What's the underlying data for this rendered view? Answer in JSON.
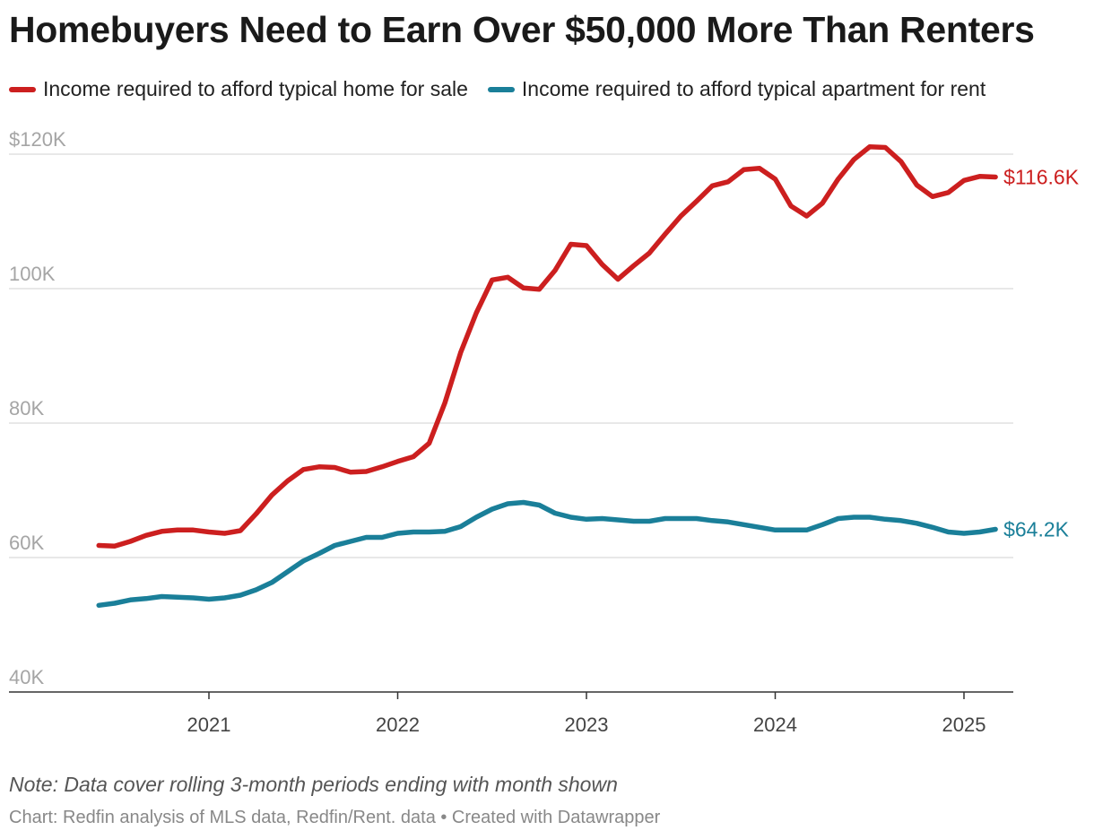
{
  "chart_data": {
    "type": "line",
    "title": "Homebuyers Need to Earn Over $50,000 More Than Renters",
    "note": "Note: Data cover rolling 3-month periods ending with month shown",
    "source": "Chart: Redfin analysis of MLS data, Redfin/Rent. data • Created with Datawrapper",
    "ylim": [
      40000,
      120000
    ],
    "y_ticks": [
      {
        "value": 120000,
        "label": "$120K"
      },
      {
        "value": 100000,
        "label": "100K"
      },
      {
        "value": 80000,
        "label": "80K"
      },
      {
        "value": 60000,
        "label": "60K"
      },
      {
        "value": 40000,
        "label": "40K"
      }
    ],
    "x_ticks": [
      {
        "value": "2021-01",
        "label": "2021"
      },
      {
        "value": "2022-01",
        "label": "2022"
      },
      {
        "value": "2023-01",
        "label": "2023"
      },
      {
        "value": "2024-01",
        "label": "2024"
      },
      {
        "value": "2025-01",
        "label": "2025"
      }
    ],
    "x": [
      "2020-06",
      "2020-07",
      "2020-08",
      "2020-09",
      "2020-10",
      "2020-11",
      "2020-12",
      "2021-01",
      "2021-02",
      "2021-03",
      "2021-04",
      "2021-05",
      "2021-06",
      "2021-07",
      "2021-08",
      "2021-09",
      "2021-10",
      "2021-11",
      "2021-12",
      "2022-01",
      "2022-02",
      "2022-03",
      "2022-04",
      "2022-05",
      "2022-06",
      "2022-07",
      "2022-08",
      "2022-09",
      "2022-10",
      "2022-11",
      "2022-12",
      "2023-01",
      "2023-02",
      "2023-03",
      "2023-04",
      "2023-05",
      "2023-06",
      "2023-07",
      "2023-08",
      "2023-09",
      "2023-10",
      "2023-11",
      "2023-12",
      "2024-01",
      "2024-02",
      "2024-03",
      "2024-04",
      "2024-05",
      "2024-06",
      "2024-07",
      "2024-08",
      "2024-09",
      "2024-10",
      "2024-11",
      "2024-12",
      "2025-01",
      "2025-02",
      "2025-03"
    ],
    "legend_placement": "top-left",
    "series": [
      {
        "name": "Income required to afford typical home for sale",
        "color": "#cc1f1f",
        "end_label": "$116.6K",
        "values": [
          61800,
          61700,
          62400,
          63300,
          63900,
          64100,
          64100,
          63800,
          63600,
          64000,
          66500,
          69300,
          71400,
          73100,
          73500,
          73400,
          72700,
          72800,
          73500,
          74300,
          75000,
          77000,
          83000,
          90500,
          96400,
          101300,
          101700,
          100100,
          99900,
          102700,
          106600,
          106400,
          103600,
          101400,
          103400,
          105300,
          108100,
          110800,
          113000,
          115300,
          115900,
          117700,
          117900,
          116300,
          112300,
          110800,
          112700,
          116300,
          119200,
          121100,
          121000,
          118900,
          115400,
          113700,
          114300,
          116100,
          116700,
          116600
        ]
      },
      {
        "name": "Income required to afford typical apartment for rent",
        "color": "#1a7f99",
        "end_label": "$64.2K",
        "values": [
          52900,
          53200,
          53700,
          53900,
          54200,
          54100,
          54000,
          53800,
          54000,
          54400,
          55200,
          56300,
          57900,
          59500,
          60600,
          61800,
          62400,
          63000,
          63000,
          63600,
          63800,
          63800,
          63900,
          64600,
          66000,
          67200,
          68000,
          68200,
          67800,
          66600,
          66000,
          65700,
          65800,
          65600,
          65400,
          65400,
          65800,
          65800,
          65800,
          65500,
          65300,
          64900,
          64500,
          64100,
          64100,
          64100,
          64900,
          65800,
          66000,
          66000,
          65700,
          65500,
          65100,
          64500,
          63800,
          63600,
          63800,
          64200
        ]
      }
    ]
  }
}
